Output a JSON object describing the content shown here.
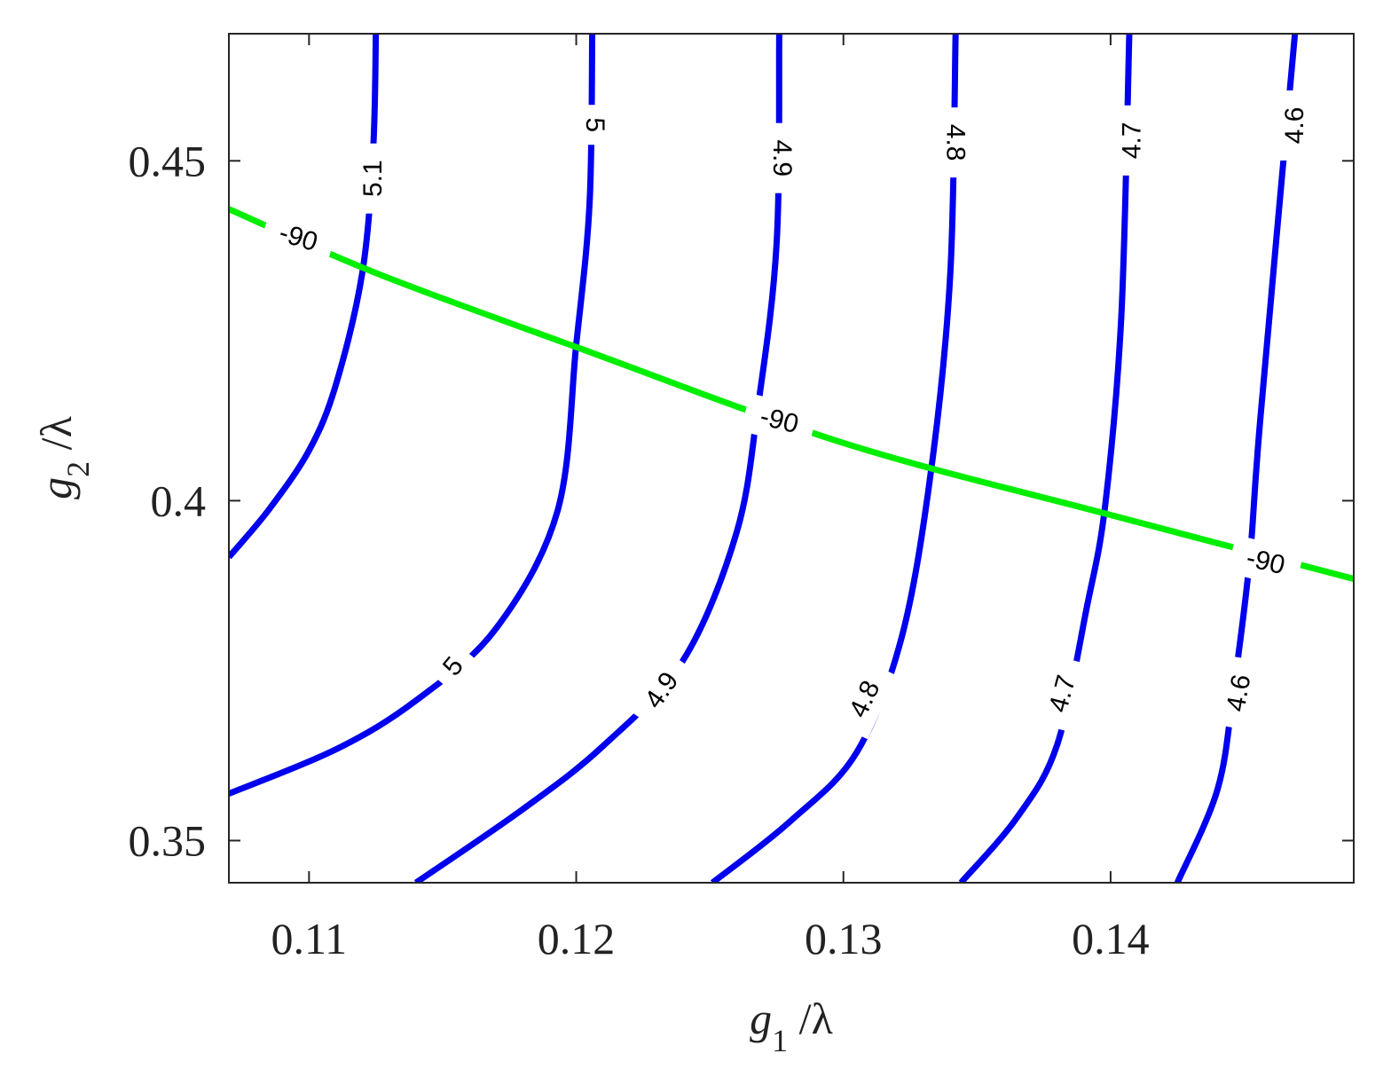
{
  "chart_data": {
    "type": "contour",
    "xlabel": {
      "symbol": "g",
      "subscript": "1",
      "suffix": " /λ"
    },
    "ylabel": {
      "symbol": "g",
      "subscript": "2",
      "suffix": " /λ"
    },
    "xlim": [
      0.107,
      0.1491
    ],
    "ylim": [
      0.3438,
      0.4687
    ],
    "x_ticks": [
      0.11,
      0.12,
      0.13,
      0.14
    ],
    "x_tick_labels": [
      "0.11",
      "0.12",
      "0.13",
      "0.14"
    ],
    "y_ticks": [
      0.35,
      0.4,
      0.45
    ],
    "y_tick_labels": [
      "0.35",
      "0.4",
      "0.45"
    ],
    "grid": false,
    "series": [
      {
        "level": "5.1",
        "color": "#0000ee",
        "points": [
          [
            0.107,
            0.3917
          ],
          [
            0.1085,
            0.3987
          ],
          [
            0.11,
            0.4074
          ],
          [
            0.111,
            0.417
          ],
          [
            0.112,
            0.4337
          ],
          [
            0.1124,
            0.4516
          ],
          [
            0.1125,
            0.4687
          ]
        ],
        "labels": [
          {
            "x": 0.1124,
            "y": 0.4474,
            "angle": -90
          }
        ]
      },
      {
        "level": "5",
        "color": "#0000ee",
        "points": [
          [
            0.107,
            0.3569
          ],
          [
            0.111,
            0.3634
          ],
          [
            0.114,
            0.3706
          ],
          [
            0.117,
            0.3812
          ],
          [
            0.1193,
            0.3985
          ],
          [
            0.12,
            0.4229
          ],
          [
            0.1205,
            0.4438
          ],
          [
            0.1206,
            0.4687
          ]
        ],
        "labels": [
          {
            "x": 0.1154,
            "y": 0.3756,
            "angle": -50
          },
          {
            "x": 0.1207,
            "y": 0.4553,
            "angle": 90
          }
        ]
      },
      {
        "level": "4.9",
        "color": "#0000ee",
        "points": [
          [
            0.114,
            0.3438
          ],
          [
            0.118,
            0.3546
          ],
          [
            0.121,
            0.3639
          ],
          [
            0.124,
            0.3765
          ],
          [
            0.126,
            0.3953
          ],
          [
            0.1268,
            0.4138
          ],
          [
            0.1275,
            0.4378
          ],
          [
            0.1276,
            0.4687
          ]
        ],
        "labels": [
          {
            "x": 0.1232,
            "y": 0.3721,
            "angle": -55
          },
          {
            "x": 0.1277,
            "y": 0.4504,
            "angle": 90
          }
        ]
      },
      {
        "level": "4.8",
        "color": "#0000ee",
        "points": [
          [
            0.1251,
            0.3438
          ],
          [
            0.128,
            0.3528
          ],
          [
            0.1305,
            0.363
          ],
          [
            0.1322,
            0.3802
          ],
          [
            0.1333,
            0.405
          ],
          [
            0.134,
            0.4334
          ],
          [
            0.1342,
            0.4687
          ]
        ],
        "labels": [
          {
            "x": 0.1308,
            "y": 0.3708,
            "angle": -65
          },
          {
            "x": 0.1342,
            "y": 0.4527,
            "angle": 90
          }
        ]
      },
      {
        "level": "4.7",
        "color": "#0000ee",
        "points": [
          [
            0.1344,
            0.3438
          ],
          [
            0.1365,
            0.3534
          ],
          [
            0.138,
            0.3641
          ],
          [
            0.1391,
            0.3841
          ],
          [
            0.1398,
            0.3994
          ],
          [
            0.1404,
            0.4271
          ],
          [
            0.1407,
            0.4687
          ]
        ],
        "labels": [
          {
            "x": 0.1382,
            "y": 0.3716,
            "angle": -75
          },
          {
            "x": 0.1408,
            "y": 0.453,
            "angle": -90
          }
        ]
      },
      {
        "level": "4.6",
        "color": "#0000ee",
        "points": [
          [
            0.1425,
            0.3438
          ],
          [
            0.144,
            0.3575
          ],
          [
            0.1446,
            0.3721
          ],
          [
            0.1452,
            0.3911
          ],
          [
            0.1456,
            0.4119
          ],
          [
            0.1469,
            0.4687
          ]
        ],
        "labels": [
          {
            "x": 0.1448,
            "y": 0.3717,
            "angle": -80
          },
          {
            "x": 0.1469,
            "y": 0.4552,
            "angle": -90
          }
        ]
      },
      {
        "level": "-90",
        "color": "#00ee00",
        "dashed_at_labels": true,
        "points": [
          [
            0.107,
            0.4429
          ],
          [
            0.1125,
            0.4335
          ],
          [
            0.12,
            0.4226
          ],
          [
            0.13,
            0.4085
          ],
          [
            0.14,
            0.3979
          ],
          [
            0.1491,
            0.3885
          ]
        ],
        "labels": [
          {
            "x": 0.1096,
            "y": 0.4387,
            "angle": 17
          },
          {
            "x": 0.1276,
            "y": 0.4118,
            "angle": 14
          },
          {
            "x": 0.1458,
            "y": 0.391,
            "angle": 13
          }
        ]
      }
    ]
  }
}
